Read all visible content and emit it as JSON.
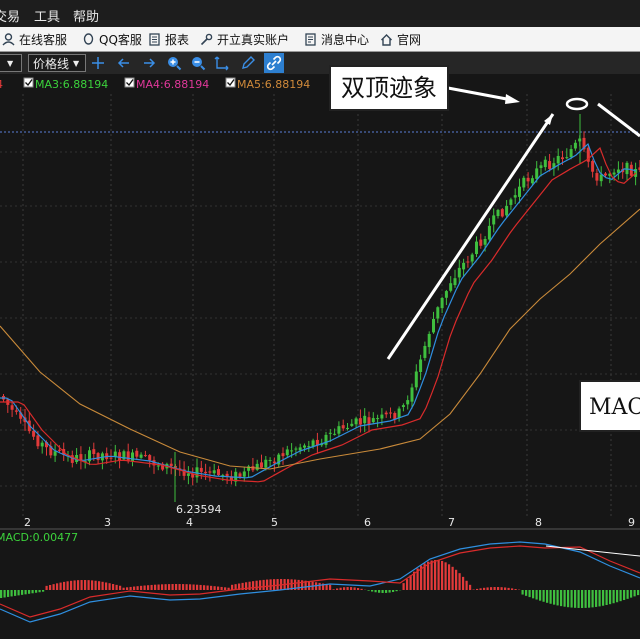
{
  "menu": {
    "items": [
      "交易",
      "工具",
      "帮助"
    ]
  },
  "toolbar": {
    "items": [
      {
        "label": "在线客服",
        "icon": "user-icon"
      },
      {
        "label": "QQ客服",
        "icon": "qq-icon"
      },
      {
        "label": "报表",
        "icon": "report-icon"
      },
      {
        "label": "开立真实账户",
        "icon": "key-icon"
      },
      {
        "label": "消息中心",
        "icon": "message-icon"
      },
      {
        "label": "官网",
        "icon": "home-icon"
      }
    ]
  },
  "chart_toolbar": {
    "line_type": "价格线"
  },
  "ma_legend": [
    {
      "label": "MA3:6.88194",
      "color": "#3cd23c"
    },
    {
      "label": "MA4:6.88194",
      "color": "#e0389a"
    },
    {
      "label": "MA5:6.88194",
      "color": "#d08a3a"
    }
  ],
  "annotations": {
    "double_top": "双顶迹象",
    "macd": "MACD"
  },
  "price_panel": {
    "low_label": "6.23594"
  },
  "macd_panel": {
    "label": "MACD:0.00477"
  },
  "colors": {
    "up": "#3fbf3f",
    "down": "#e23a3a",
    "ma_blue": "#2f8fe0",
    "ma_red": "#d92b2b",
    "ma_orange": "#c98a3a"
  },
  "chart_data": {
    "type": "candlestick",
    "x_ticks": [
      "2",
      "3",
      "4",
      "5",
      "6",
      "7",
      "8",
      "9"
    ],
    "price_range": [
      6.1,
      7.0
    ],
    "low_price": 6.23594,
    "macd_value": 0.00477
  }
}
